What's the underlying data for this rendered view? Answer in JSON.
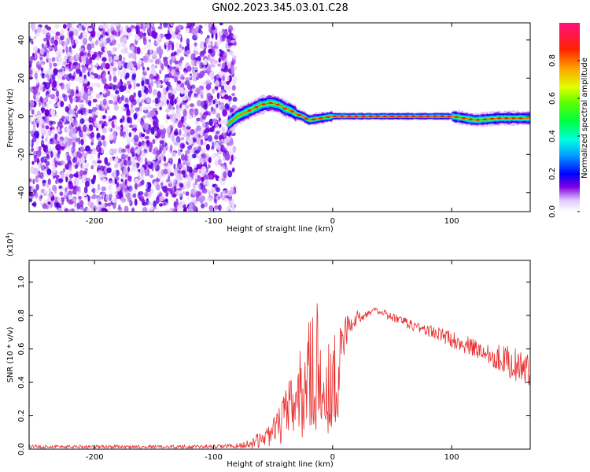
{
  "figure_title": "GN02.2023.345.03.01.C28",
  "chart_data": [
    {
      "type": "heatmap",
      "xlabel": "Height of straight line (km)",
      "ylabel": "Frequency (Hz)",
      "xlim": [
        -255,
        166
      ],
      "ylim": [
        -50,
        49
      ],
      "x_ticks": [
        -200,
        -100,
        0,
        100
      ],
      "y_ticks": [
        -40,
        -20,
        0,
        20,
        40
      ],
      "colorbar": {
        "label": "Normalized spectral amplitude",
        "range": [
          0,
          1
        ],
        "ticks": [
          0.0,
          0.2,
          0.4,
          0.6,
          0.8
        ],
        "colors": [
          "#ffffff",
          "#d8b8f8",
          "#8000e0",
          "#0000ff",
          "#00c8ff",
          "#00ff80",
          "#40ff00",
          "#c0ff00",
          "#ffc000",
          "#ff4000",
          "#ff0060",
          "#ff1080"
        ]
      },
      "regions": [
        {
          "name": "noise",
          "x_range": [
            -255,
            -82
          ],
          "freq_range": [
            -50,
            49
          ]
        },
        {
          "name": "signal",
          "x_range": [
            -88,
            166
          ],
          "ridge_x": [
            -88,
            -80,
            -70,
            -60,
            -52,
            -45,
            -40,
            -35,
            -30,
            -25,
            -20,
            -10,
            0,
            50,
            100,
            110,
            120,
            140,
            166
          ],
          "ridge_freq": [
            -4,
            0,
            3,
            6,
            7,
            6,
            4,
            3,
            1,
            0,
            -2,
            -1,
            0,
            0,
            0,
            -1,
            -2,
            -1,
            -1
          ]
        }
      ]
    },
    {
      "type": "line",
      "xlabel": "Height of straight line (km)",
      "ylabel": "SNR (10 * v/v)",
      "y_multiplier": "(x10^4)",
      "xlim": [
        -255,
        166
      ],
      "ylim": [
        0,
        1.13
      ],
      "x_ticks": [
        -200,
        -100,
        0,
        100
      ],
      "y_ticks": [
        0.0,
        0.2,
        0.4,
        0.6,
        0.8,
        1.0
      ],
      "line_color": "#e83030",
      "series": [
        {
          "x": [
            -255,
            -200,
            -150,
            -100,
            -80,
            -70,
            -60,
            -50,
            -45,
            -40,
            -35,
            -30,
            -25,
            -20,
            -15,
            -12,
            -10,
            -8,
            -5,
            0,
            5,
            10,
            20,
            30,
            35,
            40,
            50,
            60,
            80,
            100,
            120,
            140,
            150,
            160,
            166
          ],
          "y": [
            0.015,
            0.015,
            0.015,
            0.015,
            0.02,
            0.03,
            0.06,
            0.1,
            0.14,
            0.2,
            0.25,
            0.3,
            0.35,
            0.45,
            0.5,
            0.55,
            0.6,
            0.55,
            0.4,
            0.35,
            0.5,
            0.7,
            0.78,
            0.82,
            0.83,
            0.82,
            0.79,
            0.76,
            0.71,
            0.66,
            0.6,
            0.55,
            0.52,
            0.48,
            0.46
          ],
          "spread": [
            0.01,
            0.01,
            0.01,
            0.01,
            0.015,
            0.03,
            0.05,
            0.08,
            0.12,
            0.15,
            0.2,
            0.25,
            0.3,
            0.35,
            0.4,
            0.45,
            0.55,
            0.4,
            0.3,
            0.3,
            0.25,
            0.12,
            0.05,
            0.02,
            0.015,
            0.02,
            0.03,
            0.03,
            0.04,
            0.05,
            0.06,
            0.08,
            0.1,
            0.1,
            0.1
          ]
        }
      ]
    }
  ]
}
